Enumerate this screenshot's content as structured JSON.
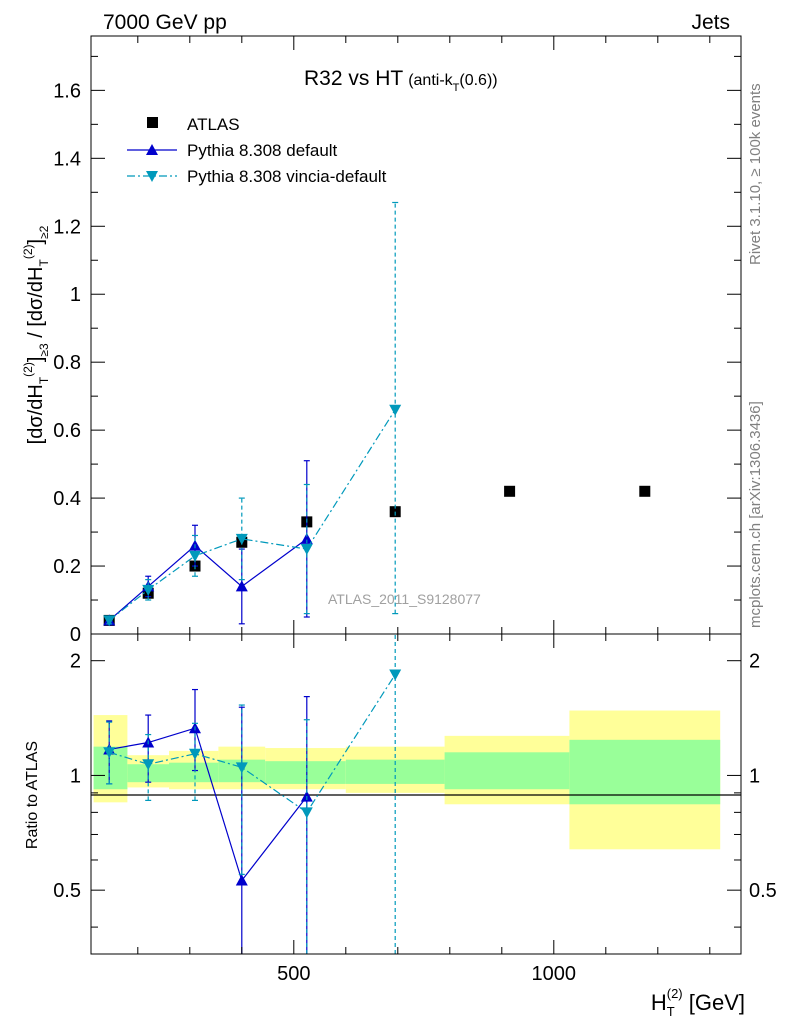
{
  "header": {
    "left": "7000 GeV pp",
    "right": "Jets"
  },
  "side_labels": {
    "rivet": "Rivet 3.1.10, ≥ 100k events",
    "mcplots": "mcplots.cern.ch [arXiv:1306.3436]"
  },
  "chart_data": [
    {
      "type": "scatter",
      "title_main": "R32 vs HT",
      "title_sub": "(anti-k",
      "title_sub_T": "T",
      "title_sub_end": "(0.6))",
      "ylabel": "[dσ/dH_T^(2)]_{≥3} / [dσ/dH_T^(2)]_{≥2}",
      "watermark": "ATLAS_2011_S9128077",
      "xlim": [
        110,
        1360
      ],
      "ylim": [
        0,
        1.76
      ],
      "y_ticks": [
        0,
        0.2,
        0.4,
        0.6,
        0.8,
        1,
        1.2,
        1.4,
        1.6
      ],
      "y_tick_labels": [
        "0",
        "0.2",
        "0.4",
        "0.6",
        "0.8",
        "1",
        "1.2",
        "1.4",
        "1.6"
      ],
      "legend_position": "top-left",
      "series": [
        {
          "name": "ATLAS",
          "color": "#000000",
          "marker": "square",
          "x": [
            145,
            220,
            310,
            400,
            525,
            695,
            915,
            1175
          ],
          "y": [
            0.04,
            0.12,
            0.2,
            0.27,
            0.33,
            0.36,
            0.42,
            0.42
          ],
          "err": [
            0.005,
            0.005,
            0.008,
            0.01,
            0.01,
            0.015,
            0.015,
            0.015
          ]
        },
        {
          "name": "Pythia 8.308 default",
          "color": "#0000cc",
          "marker": "triangle-up",
          "line": "solid",
          "x": [
            145,
            220,
            310,
            400,
            525
          ],
          "y": [
            0.04,
            0.14,
            0.26,
            0.14,
            0.28
          ],
          "err_lo": [
            0.01,
            0.03,
            0.06,
            0.11,
            0.23
          ],
          "err_hi": [
            0.01,
            0.03,
            0.06,
            0.11,
            0.23
          ]
        },
        {
          "name": "Pythia 8.308 vincia-default",
          "color": "#0099bb",
          "marker": "triangle-down",
          "line": "dashdot",
          "x": [
            145,
            220,
            310,
            400,
            525,
            695
          ],
          "y": [
            0.04,
            0.13,
            0.23,
            0.28,
            0.25,
            0.66
          ],
          "err_lo": [
            0.01,
            0.03,
            0.06,
            0.12,
            0.19,
            0.6
          ],
          "err_hi": [
            0.01,
            0.03,
            0.06,
            0.12,
            0.19,
            0.61
          ]
        }
      ]
    },
    {
      "type": "scatter",
      "ylabel": "Ratio to ATLAS",
      "xlabel": "H_T^(2) [GeV]",
      "xlim": [
        110,
        1360
      ],
      "ylim": [
        0.34,
        2.35
      ],
      "log_y": true,
      "x_ticks": [
        500,
        1000
      ],
      "x_tick_labels": [
        "500",
        "1000"
      ],
      "y_ticks": [
        0.5,
        1,
        2
      ],
      "y_tick_labels": [
        "0.5",
        "1",
        "2"
      ],
      "bands": [
        {
          "x0": 115,
          "x1": 180,
          "yel": [
            0.85,
            1.44
          ],
          "grn": [
            0.92,
            1.19
          ]
        },
        {
          "x0": 180,
          "x1": 260,
          "yel": [
            0.93,
            1.13
          ],
          "grn": [
            0.96,
            1.07
          ]
        },
        {
          "x0": 260,
          "x1": 355,
          "yel": [
            0.92,
            1.16
          ],
          "grn": [
            0.96,
            1.08
          ]
        },
        {
          "x0": 355,
          "x1": 445,
          "yel": [
            0.92,
            1.19
          ],
          "grn": [
            0.96,
            1.1
          ]
        },
        {
          "x0": 445,
          "x1": 600,
          "yel": [
            0.92,
            1.18
          ],
          "grn": [
            0.95,
            1.09
          ]
        },
        {
          "x0": 600,
          "x1": 790,
          "yel": [
            0.9,
            1.19
          ],
          "grn": [
            0.95,
            1.1
          ]
        },
        {
          "x0": 790,
          "x1": 1030,
          "yel": [
            0.84,
            1.27
          ],
          "grn": [
            0.92,
            1.15
          ]
        },
        {
          "x0": 1030,
          "x1": 1320,
          "yel": [
            0.64,
            1.48
          ],
          "grn": [
            0.84,
            1.24
          ]
        }
      ],
      "series": [
        {
          "name": "Pythia 8.308 default",
          "color": "#0000cc",
          "marker": "triangle-up",
          "line": "solid",
          "x": [
            145,
            220,
            310,
            400,
            525
          ],
          "y": [
            1.17,
            1.22,
            1.33,
            0.53,
            0.88
          ],
          "err_lo": [
            0.22,
            0.26,
            0.3,
            0.25,
            0.55
          ],
          "err_hi": [
            0.22,
            0.22,
            0.35,
            0.98,
            0.73
          ]
        },
        {
          "name": "Pythia 8.308 vincia-default",
          "color": "#0099bb",
          "marker": "triangle-down",
          "line": "dashdot",
          "x": [
            145,
            220,
            310,
            400,
            525,
            695
          ],
          "y": [
            1.15,
            1.07,
            1.14,
            1.05,
            0.8,
            1.84
          ],
          "err_lo": [
            0.2,
            0.21,
            0.28,
            0.5,
            0.46,
            1.5
          ],
          "err_hi": [
            0.23,
            0.21,
            0.23,
            0.48,
            0.6,
            0.6
          ]
        }
      ]
    }
  ]
}
